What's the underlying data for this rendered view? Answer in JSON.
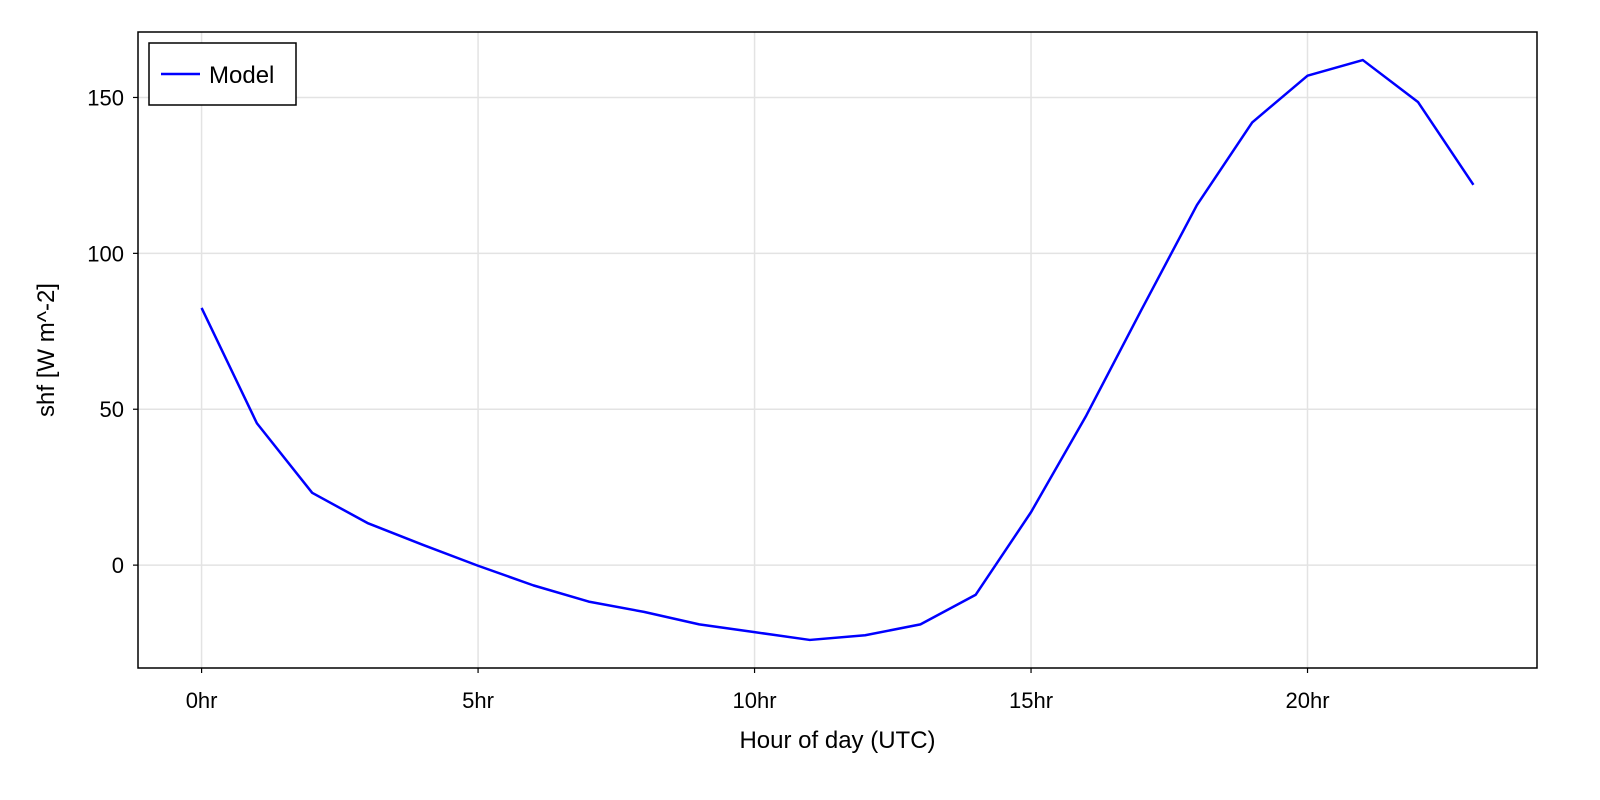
{
  "chart_data": {
    "type": "line",
    "xlabel": "Hour of day (UTC)",
    "ylabel": "shf [W m^-2]",
    "xlim": [
      -1.15,
      24.15
    ],
    "ylim": [
      -33,
      171
    ],
    "xticks": [
      {
        "value": 0,
        "label": "0hr"
      },
      {
        "value": 5,
        "label": "5hr"
      },
      {
        "value": 10,
        "label": "10hr"
      },
      {
        "value": 15,
        "label": "15hr"
      },
      {
        "value": 20,
        "label": "20hr"
      }
    ],
    "yticks": [
      {
        "value": 0,
        "label": "0"
      },
      {
        "value": 50,
        "label": "50"
      },
      {
        "value": 100,
        "label": "100"
      },
      {
        "value": 150,
        "label": "150"
      }
    ],
    "grid": true,
    "legend": {
      "position": "top-left"
    },
    "series": [
      {
        "name": "Model",
        "color": "#0000ff",
        "x": [
          0,
          1,
          2,
          3,
          4,
          5,
          6,
          7,
          8,
          9,
          10,
          11,
          12,
          13,
          14,
          15,
          16,
          17,
          18,
          19,
          20,
          21,
          22,
          23
        ],
        "y": [
          82.5,
          45.5,
          23.2,
          13.5,
          6.5,
          -0.2,
          -6.5,
          -11.7,
          -15,
          -19,
          -21.5,
          -24,
          -22.5,
          -19,
          -9.5,
          17,
          48,
          82,
          115.5,
          142,
          157,
          162,
          148.5,
          122
        ]
      }
    ]
  }
}
